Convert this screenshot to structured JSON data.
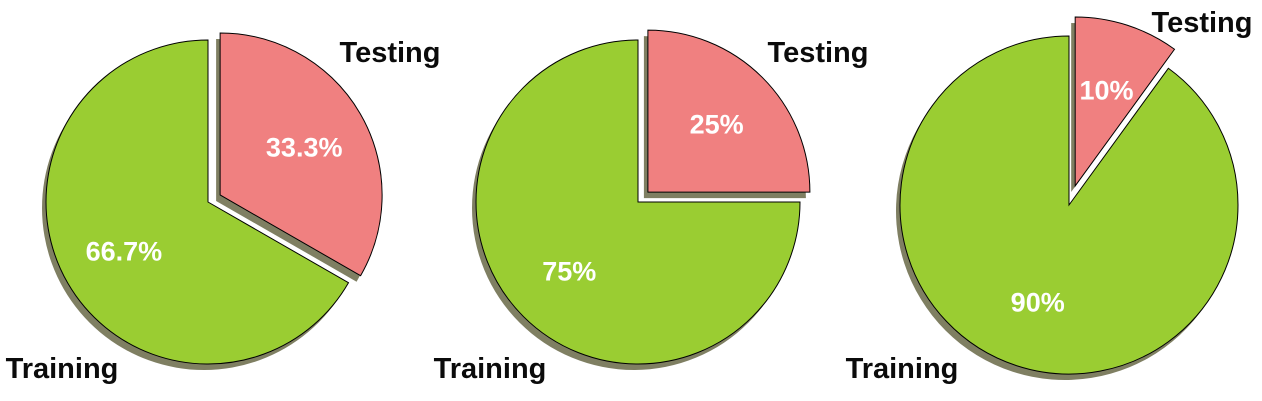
{
  "chart_data": [
    {
      "type": "pie",
      "title": "",
      "slices": [
        {
          "label": "Testing",
          "value": 33.3,
          "display": "33.3%",
          "color": "#F08080",
          "exploded": true
        },
        {
          "label": "Training",
          "value": 66.7,
          "display": "66.7%",
          "color": "#9ACD32",
          "exploded": false
        }
      ]
    },
    {
      "type": "pie",
      "title": "",
      "slices": [
        {
          "label": "Testing",
          "value": 25,
          "display": "25%",
          "color": "#F08080",
          "exploded": true
        },
        {
          "label": "Training",
          "value": 75,
          "display": "75%",
          "color": "#9ACD32",
          "exploded": false
        }
      ]
    },
    {
      "type": "pie",
      "title": "",
      "slices": [
        {
          "label": "Testing",
          "value": 10,
          "display": "10%",
          "color": "#F08080",
          "exploded": true
        },
        {
          "label": "Training",
          "value": 90,
          "display": "90%",
          "color": "#9ACD32",
          "exploded": false
        }
      ]
    }
  ],
  "colors": {
    "shadow": "#7f7f62",
    "edge": "#000000"
  }
}
